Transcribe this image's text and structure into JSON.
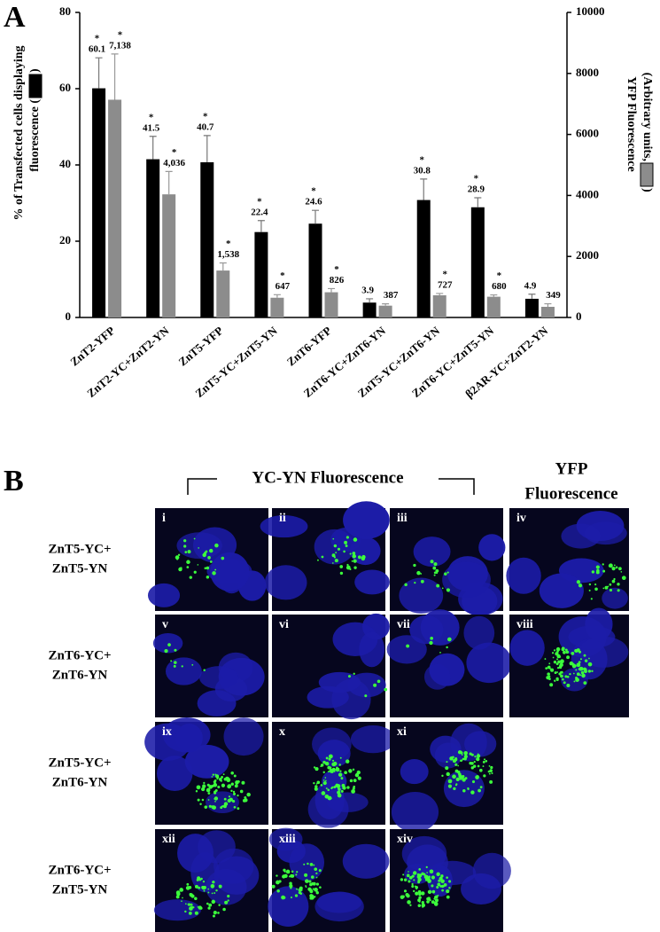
{
  "panel_labels": [
    "A",
    "B"
  ],
  "chart_data": {
    "type": "bar",
    "categories": [
      "ZnT2-YFP",
      "ZnT2-YC+ZnT2-YN",
      "ZnT5-YFP",
      "ZnT5-YC+ZnT5-YN",
      "ZnT6-YFP",
      "ZnT6-YC+ZnT6-YN",
      "ZnT5-YC+ZnT6-YN",
      "ZnT6-YC+ZnT5-YN",
      "β2AR-YC+ZnT2-YN"
    ],
    "ylabel": [
      "% of Transfected cells displaying",
      "fluorescence (",
      ")"
    ],
    "y2label": [
      "YFP Fluorescence",
      "(Arbitrary units, ",
      ")"
    ],
    "ylim": [
      0,
      80
    ],
    "yticks": [
      0,
      20,
      40,
      60,
      80
    ],
    "y2lim": [
      0,
      10000
    ],
    "y2ticks": [
      0,
      2000,
      4000,
      6000,
      8000,
      10000
    ],
    "series": [
      {
        "color": "#000000",
        "values": [
          60.1,
          41.5,
          40.7,
          22.4,
          24.6,
          3.9,
          30.8,
          28.9,
          4.9
        ],
        "errors": [
          8,
          6,
          7,
          3,
          3.5,
          1,
          5.5,
          2.5,
          1.2
        ],
        "markers": [
          "*",
          "*",
          "*",
          "*",
          "*",
          null,
          "*",
          "*",
          null
        ]
      },
      {
        "color": "#8c8c8c",
        "axis": "y2",
        "values": [
          7138,
          4036,
          1538,
          647,
          826,
          387,
          727,
          680,
          349
        ],
        "value_labels": [
          "7,138",
          "4,036",
          "1,538",
          "647",
          "826",
          "387",
          "727",
          "680",
          "349"
        ],
        "errors": [
          1500,
          750,
          250,
          100,
          120,
          60,
          60,
          60,
          100
        ],
        "markers": [
          "*",
          "*",
          "*",
          "*",
          "*",
          null,
          "*",
          "*",
          null
        ]
      }
    ]
  },
  "micrographs": {
    "header_left": "YC-YN Fluorescence",
    "header_right": [
      "YFP",
      "Fluorescence"
    ],
    "rows": [
      {
        "label": [
          "ZnT5-YC+",
          "ZnT5-YN"
        ],
        "panels": [
          "i",
          "ii",
          "iii",
          "iv"
        ]
      },
      {
        "label": [
          "ZnT6-YC+",
          "ZnT6-YN"
        ],
        "panels": [
          "v",
          "vi",
          "vii",
          "viii"
        ]
      },
      {
        "label": [
          "ZnT5-YC+",
          "ZnT6-YN"
        ],
        "panels": [
          "ix",
          "x",
          "xi"
        ]
      },
      {
        "label": [
          "ZnT6-YC+",
          "ZnT5-YN"
        ],
        "panels": [
          "xii",
          "xiii",
          "xiv"
        ]
      }
    ]
  }
}
